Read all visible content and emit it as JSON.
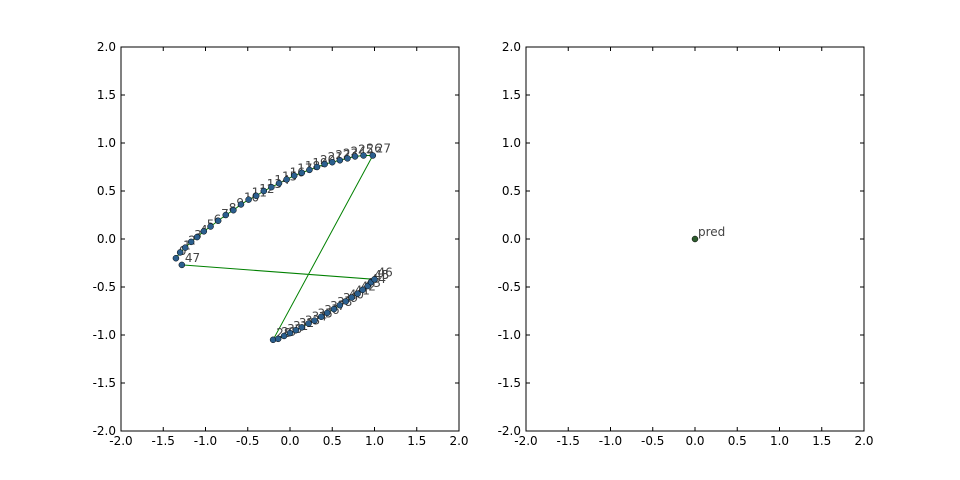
{
  "chart_data": [
    {
      "type": "line",
      "x": [
        -1.35,
        -1.3,
        -1.24,
        -1.17,
        -1.1,
        -1.02,
        -0.94,
        -0.85,
        -0.76,
        -0.67,
        -0.58,
        -0.49,
        -0.4,
        -0.31,
        -0.22,
        -0.13,
        -0.04,
        0.05,
        0.14,
        0.23,
        0.32,
        0.41,
        0.5,
        0.59,
        0.68,
        0.77,
        0.87,
        0.98,
        -0.2,
        -0.14,
        -0.07,
        0.0,
        0.07,
        0.14,
        0.22,
        0.29,
        0.37,
        0.44,
        0.52,
        0.59,
        0.66,
        0.73,
        0.8,
        0.86,
        0.92,
        0.96,
        1.0,
        -1.28
      ],
      "y": [
        -0.2,
        -0.14,
        -0.09,
        -0.03,
        0.02,
        0.08,
        0.13,
        0.19,
        0.25,
        0.3,
        0.36,
        0.41,
        0.45,
        0.5,
        0.54,
        0.58,
        0.62,
        0.66,
        0.69,
        0.72,
        0.75,
        0.78,
        0.8,
        0.82,
        0.84,
        0.86,
        0.87,
        0.87,
        -1.05,
        -1.04,
        -1.01,
        -0.98,
        -0.95,
        -0.92,
        -0.88,
        -0.85,
        -0.81,
        -0.77,
        -0.73,
        -0.69,
        -0.65,
        -0.61,
        -0.57,
        -0.53,
        -0.49,
        -0.45,
        -0.42,
        -0.27
      ],
      "labels": [
        "0",
        "1",
        "2",
        "3",
        "4",
        "5",
        "6",
        "7",
        "8",
        "9",
        "10",
        "11",
        "12",
        "13",
        "14",
        "15",
        "16",
        "17",
        "18",
        "19",
        "20",
        "21",
        "22",
        "23",
        "24",
        "25",
        "26",
        "27",
        "28",
        "29",
        "30",
        "31",
        "32",
        "33",
        "34",
        "35",
        "36",
        "37",
        "38",
        "39",
        "40",
        "41",
        "42",
        "43",
        "44",
        "45",
        "46",
        "47"
      ],
      "line_color": "#008000",
      "marker_color": "#2b5f8e",
      "xlim": [
        -2,
        2
      ],
      "ylim": [
        -2,
        2
      ],
      "xticks": [
        {
          "value": -2,
          "label": "-2.0"
        },
        {
          "value": -1.5,
          "label": "-1.5"
        },
        {
          "value": -1,
          "label": "-1.0"
        },
        {
          "value": -0.5,
          "label": "-0.5"
        },
        {
          "value": 0,
          "label": "0.0"
        },
        {
          "value": 0.5,
          "label": "0.5"
        },
        {
          "value": 1,
          "label": "1.0"
        },
        {
          "value": 1.5,
          "label": "1.5"
        },
        {
          "value": 2,
          "label": "2.0"
        }
      ],
      "yticks": [
        {
          "value": -2,
          "label": "-2.0"
        },
        {
          "value": -1.5,
          "label": "-1.5"
        },
        {
          "value": -1,
          "label": "-1.0"
        },
        {
          "value": -0.5,
          "label": "-0.5"
        },
        {
          "value": 0,
          "label": "0.0"
        },
        {
          "value": 0.5,
          "label": "0.5"
        },
        {
          "value": 1,
          "label": "1.0"
        },
        {
          "value": 1.5,
          "label": "1.5"
        },
        {
          "value": 2,
          "label": "2.0"
        }
      ]
    },
    {
      "type": "line",
      "x": [
        0
      ],
      "y": [
        0
      ],
      "labels": [
        "pred"
      ],
      "line_color": "#008000",
      "marker_color": "#2e5d2e",
      "xlim": [
        -2,
        2
      ],
      "ylim": [
        -2,
        2
      ],
      "xticks": [
        {
          "value": -2,
          "label": "-2.0"
        },
        {
          "value": -1.5,
          "label": "-1.5"
        },
        {
          "value": -1,
          "label": "-1.0"
        },
        {
          "value": -0.5,
          "label": "-0.5"
        },
        {
          "value": 0,
          "label": "0.0"
        },
        {
          "value": 0.5,
          "label": "0.5"
        },
        {
          "value": 1,
          "label": "1.0"
        },
        {
          "value": 1.5,
          "label": "1.5"
        },
        {
          "value": 2,
          "label": "2.0"
        }
      ],
      "yticks": [
        {
          "value": -2,
          "label": "-2.0"
        },
        {
          "value": -1.5,
          "label": "-1.5"
        },
        {
          "value": -1,
          "label": "-1.0"
        },
        {
          "value": -0.5,
          "label": "-0.5"
        },
        {
          "value": 0,
          "label": "0.0"
        },
        {
          "value": 0.5,
          "label": "0.5"
        },
        {
          "value": 1,
          "label": "1.0"
        },
        {
          "value": 1.5,
          "label": "1.5"
        },
        {
          "value": 2,
          "label": "2.0"
        }
      ]
    }
  ]
}
